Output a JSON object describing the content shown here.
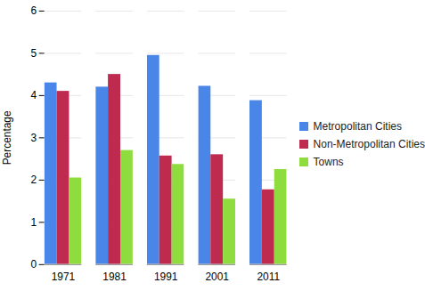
{
  "chart_data": {
    "type": "bar",
    "y_label": "Percentage",
    "categories": [
      "1971",
      "1981",
      "1991",
      "2001",
      "2011"
    ],
    "series": [
      {
        "name": "Metropolitan Cities",
        "color": "#4a86e8",
        "values": [
          4.3,
          4.2,
          4.95,
          4.22,
          3.88
        ]
      },
      {
        "name": "Non-Metropolitan Cities",
        "color": "#bf2a4f",
        "values": [
          4.1,
          4.5,
          2.57,
          2.6,
          1.77
        ]
      },
      {
        "name": "Towns",
        "color": "#8edc3e",
        "values": [
          2.05,
          2.7,
          2.37,
          1.55,
          2.25
        ]
      }
    ],
    "ylim": [
      0,
      6
    ],
    "yticks": [
      0,
      1,
      2,
      3,
      4,
      5,
      6
    ],
    "grid": true,
    "legend": "right"
  }
}
